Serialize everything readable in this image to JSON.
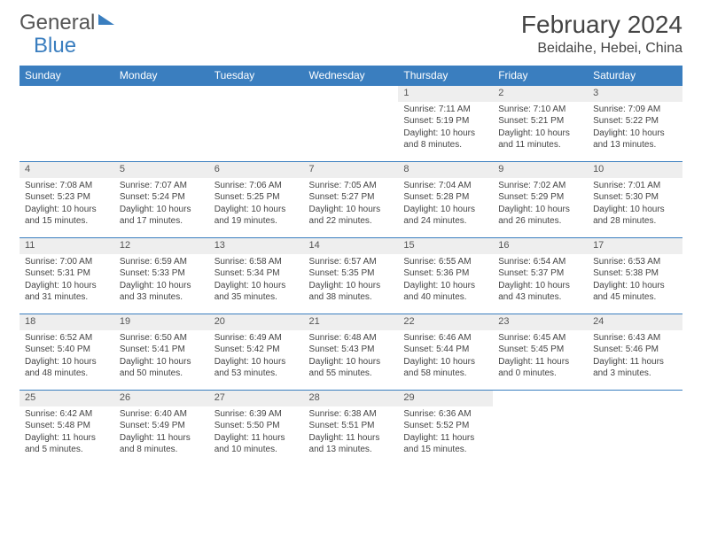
{
  "brand": {
    "part1": "General",
    "part2": "Blue"
  },
  "title": "February 2024",
  "location": "Beidaihe, Hebei, China",
  "colors": {
    "accent": "#3a7ebf",
    "header_text": "#ffffff",
    "daynum_bg": "#eeeeee",
    "text": "#444444"
  },
  "day_headers": [
    "Sunday",
    "Monday",
    "Tuesday",
    "Wednesday",
    "Thursday",
    "Friday",
    "Saturday"
  ],
  "weeks": [
    [
      null,
      null,
      null,
      null,
      {
        "n": "1",
        "sr": "7:11 AM",
        "ss": "5:19 PM",
        "dl": "10 hours and 8 minutes."
      },
      {
        "n": "2",
        "sr": "7:10 AM",
        "ss": "5:21 PM",
        "dl": "10 hours and 11 minutes."
      },
      {
        "n": "3",
        "sr": "7:09 AM",
        "ss": "5:22 PM",
        "dl": "10 hours and 13 minutes."
      }
    ],
    [
      {
        "n": "4",
        "sr": "7:08 AM",
        "ss": "5:23 PM",
        "dl": "10 hours and 15 minutes."
      },
      {
        "n": "5",
        "sr": "7:07 AM",
        "ss": "5:24 PM",
        "dl": "10 hours and 17 minutes."
      },
      {
        "n": "6",
        "sr": "7:06 AM",
        "ss": "5:25 PM",
        "dl": "10 hours and 19 minutes."
      },
      {
        "n": "7",
        "sr": "7:05 AM",
        "ss": "5:27 PM",
        "dl": "10 hours and 22 minutes."
      },
      {
        "n": "8",
        "sr": "7:04 AM",
        "ss": "5:28 PM",
        "dl": "10 hours and 24 minutes."
      },
      {
        "n": "9",
        "sr": "7:02 AM",
        "ss": "5:29 PM",
        "dl": "10 hours and 26 minutes."
      },
      {
        "n": "10",
        "sr": "7:01 AM",
        "ss": "5:30 PM",
        "dl": "10 hours and 28 minutes."
      }
    ],
    [
      {
        "n": "11",
        "sr": "7:00 AM",
        "ss": "5:31 PM",
        "dl": "10 hours and 31 minutes."
      },
      {
        "n": "12",
        "sr": "6:59 AM",
        "ss": "5:33 PM",
        "dl": "10 hours and 33 minutes."
      },
      {
        "n": "13",
        "sr": "6:58 AM",
        "ss": "5:34 PM",
        "dl": "10 hours and 35 minutes."
      },
      {
        "n": "14",
        "sr": "6:57 AM",
        "ss": "5:35 PM",
        "dl": "10 hours and 38 minutes."
      },
      {
        "n": "15",
        "sr": "6:55 AM",
        "ss": "5:36 PM",
        "dl": "10 hours and 40 minutes."
      },
      {
        "n": "16",
        "sr": "6:54 AM",
        "ss": "5:37 PM",
        "dl": "10 hours and 43 minutes."
      },
      {
        "n": "17",
        "sr": "6:53 AM",
        "ss": "5:38 PM",
        "dl": "10 hours and 45 minutes."
      }
    ],
    [
      {
        "n": "18",
        "sr": "6:52 AM",
        "ss": "5:40 PM",
        "dl": "10 hours and 48 minutes."
      },
      {
        "n": "19",
        "sr": "6:50 AM",
        "ss": "5:41 PM",
        "dl": "10 hours and 50 minutes."
      },
      {
        "n": "20",
        "sr": "6:49 AM",
        "ss": "5:42 PM",
        "dl": "10 hours and 53 minutes."
      },
      {
        "n": "21",
        "sr": "6:48 AM",
        "ss": "5:43 PM",
        "dl": "10 hours and 55 minutes."
      },
      {
        "n": "22",
        "sr": "6:46 AM",
        "ss": "5:44 PM",
        "dl": "10 hours and 58 minutes."
      },
      {
        "n": "23",
        "sr": "6:45 AM",
        "ss": "5:45 PM",
        "dl": "11 hours and 0 minutes."
      },
      {
        "n": "24",
        "sr": "6:43 AM",
        "ss": "5:46 PM",
        "dl": "11 hours and 3 minutes."
      }
    ],
    [
      {
        "n": "25",
        "sr": "6:42 AM",
        "ss": "5:48 PM",
        "dl": "11 hours and 5 minutes."
      },
      {
        "n": "26",
        "sr": "6:40 AM",
        "ss": "5:49 PM",
        "dl": "11 hours and 8 minutes."
      },
      {
        "n": "27",
        "sr": "6:39 AM",
        "ss": "5:50 PM",
        "dl": "11 hours and 10 minutes."
      },
      {
        "n": "28",
        "sr": "6:38 AM",
        "ss": "5:51 PM",
        "dl": "11 hours and 13 minutes."
      },
      {
        "n": "29",
        "sr": "6:36 AM",
        "ss": "5:52 PM",
        "dl": "11 hours and 15 minutes."
      },
      null,
      null
    ]
  ],
  "labels": {
    "sunrise": "Sunrise:",
    "sunset": "Sunset:",
    "daylight": "Daylight:"
  }
}
